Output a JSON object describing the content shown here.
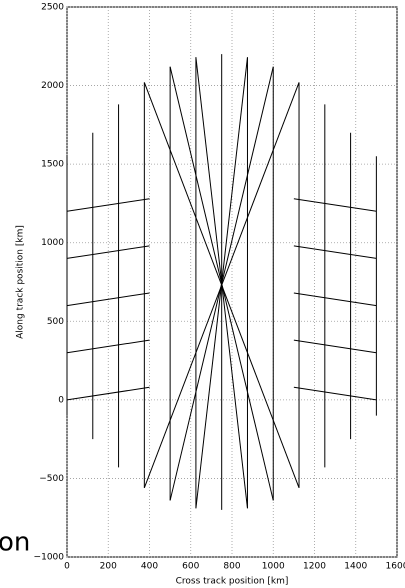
{
  "chart_data": {
    "type": "segments",
    "xlabel": "Cross track position [km]",
    "ylabel": "Along track position [km]",
    "annotation": "on",
    "color": "#000000",
    "grid": true,
    "xlim": [
      0,
      1600
    ],
    "ylim": [
      -1000,
      2500
    ],
    "xticks": [
      0,
      200,
      400,
      600,
      800,
      1000,
      1200,
      1400,
      1600
    ],
    "yticks": [
      {
        "value": -1000,
        "label": "−1000"
      },
      {
        "value": -500,
        "label": "−500"
      },
      0,
      500,
      1000,
      1500,
      2000,
      2500
    ],
    "segments": [
      {
        "x": [
          0,
          0
        ],
        "y": [
          1550,
          -100
        ]
      },
      {
        "x": [
          125,
          125
        ],
        "y": [
          1700,
          -250
        ]
      },
      {
        "x": [
          250,
          250
        ],
        "y": [
          1880,
          -430
        ]
      },
      {
        "x": [
          375,
          375
        ],
        "y": [
          2020,
          -560
        ]
      },
      {
        "x": [
          500,
          500
        ],
        "y": [
          2120,
          -640
        ]
      },
      {
        "x": [
          625,
          625
        ],
        "y": [
          2180,
          -690
        ]
      },
      {
        "x": [
          750,
          750
        ],
        "y": [
          2200,
          -700
        ]
      },
      {
        "x": [
          875,
          875
        ],
        "y": [
          2180,
          -690
        ]
      },
      {
        "x": [
          1000,
          1000
        ],
        "y": [
          2120,
          -640
        ]
      },
      {
        "x": [
          1125,
          1125
        ],
        "y": [
          2020,
          -560
        ]
      },
      {
        "x": [
          1250,
          1250
        ],
        "y": [
          1880,
          -430
        ]
      },
      {
        "x": [
          1375,
          1375
        ],
        "y": [
          1700,
          -250
        ]
      },
      {
        "x": [
          1500,
          1500
        ],
        "y": [
          1550,
          -100
        ]
      },
      {
        "x": [
          500,
          1000
        ],
        "y": [
          2120,
          -640
        ]
      },
      {
        "x": [
          1000,
          500
        ],
        "y": [
          2120,
          -640
        ]
      },
      {
        "x": [
          625,
          875
        ],
        "y": [
          2180,
          -690
        ]
      },
      {
        "x": [
          875,
          625
        ],
        "y": [
          2180,
          -690
        ]
      },
      {
        "x": [
          375,
          1125
        ],
        "y": [
          2020,
          -560
        ]
      },
      {
        "x": [
          1125,
          375
        ],
        "y": [
          2020,
          -560
        ]
      },
      {
        "x": [
          0,
          400
        ],
        "y": [
          0,
          80
        ]
      },
      {
        "x": [
          0,
          400
        ],
        "y": [
          300,
          380
        ]
      },
      {
        "x": [
          0,
          400
        ],
        "y": [
          600,
          680
        ]
      },
      {
        "x": [
          0,
          400
        ],
        "y": [
          900,
          980
        ]
      },
      {
        "x": [
          0,
          400
        ],
        "y": [
          1200,
          1280
        ]
      },
      {
        "x": [
          1100,
          1500
        ],
        "y": [
          80,
          0
        ]
      },
      {
        "x": [
          1100,
          1500
        ],
        "y": [
          380,
          300
        ]
      },
      {
        "x": [
          1100,
          1500
        ],
        "y": [
          680,
          600
        ]
      },
      {
        "x": [
          1100,
          1500
        ],
        "y": [
          980,
          900
        ]
      },
      {
        "x": [
          1100,
          1500
        ],
        "y": [
          1280,
          1200
        ]
      }
    ]
  }
}
